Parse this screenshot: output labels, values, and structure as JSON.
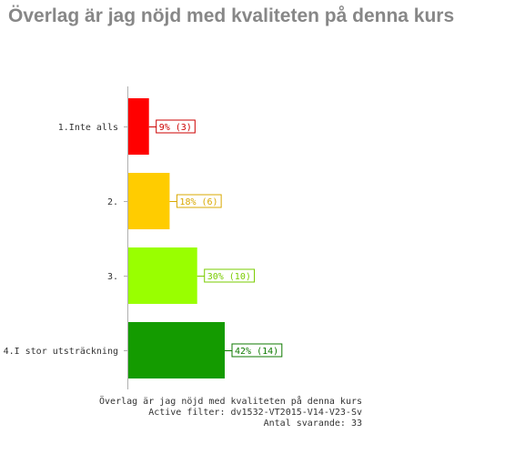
{
  "page": {
    "title": "Överlag är jag nöjd med kvaliteten på denna kurs"
  },
  "chart_data": {
    "type": "bar",
    "orientation": "horizontal",
    "categories": [
      "1.Inte alls",
      "2.",
      "3.",
      "4.I stor utsträckning"
    ],
    "values": [
      9,
      18,
      30,
      42
    ],
    "counts": [
      3,
      6,
      10,
      14
    ],
    "data_labels": [
      "9% (3)",
      "18% (6)",
      "30% (10)",
      "42% (14)"
    ],
    "colors": [
      "#ff0000",
      "#ffcc00",
      "#99ff00",
      "#149b00"
    ],
    "label_colors": [
      "#cc0000",
      "#d9a800",
      "#7acc00",
      "#0f7a00"
    ],
    "xlim": [
      0,
      100
    ],
    "grid": false,
    "footer": [
      "Överlag är jag nöjd med kvaliteten på denna kurs",
      "Active filter: dv1532-VT2015-V14-V23-Sv",
      "Antal svarande: 33"
    ]
  }
}
